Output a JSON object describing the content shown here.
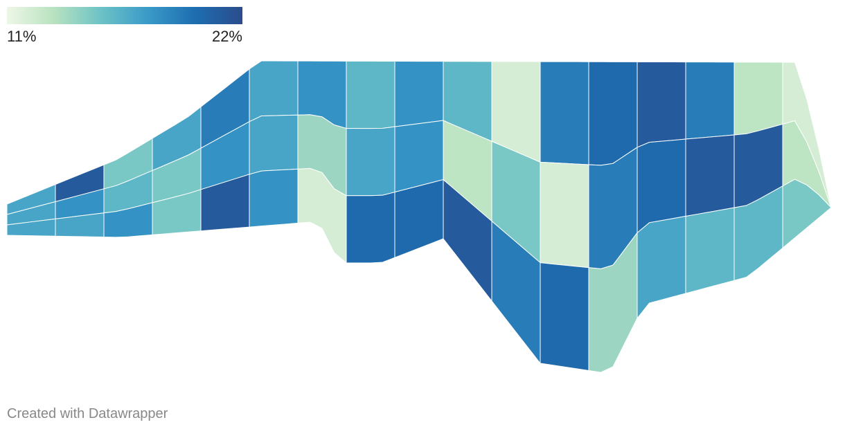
{
  "chart_data": {
    "type": "choropleth",
    "colorscale": {
      "min": {
        "value": 11,
        "label": "11%"
      },
      "max": {
        "value": 22,
        "label": "22%"
      },
      "colors": [
        "#eef7e6",
        "#b8e2c0",
        "#6cc2c6",
        "#3a9ac8",
        "#1d6db0",
        "#2b4c8c"
      ]
    },
    "values": [
      17,
      17,
      17,
      21,
      18,
      17,
      15,
      16,
      18,
      17,
      15,
      15,
      19,
      18,
      21,
      17,
      17,
      18,
      18,
      14,
      12,
      16,
      17,
      20,
      18,
      18,
      20,
      16,
      13,
      21,
      12,
      15,
      19,
      19,
      12,
      20,
      20,
      19,
      14,
      21,
      20,
      17,
      19,
      21,
      16,
      13,
      21,
      16,
      12,
      13,
      15
    ],
    "footer": "Created with Datawrapper"
  }
}
